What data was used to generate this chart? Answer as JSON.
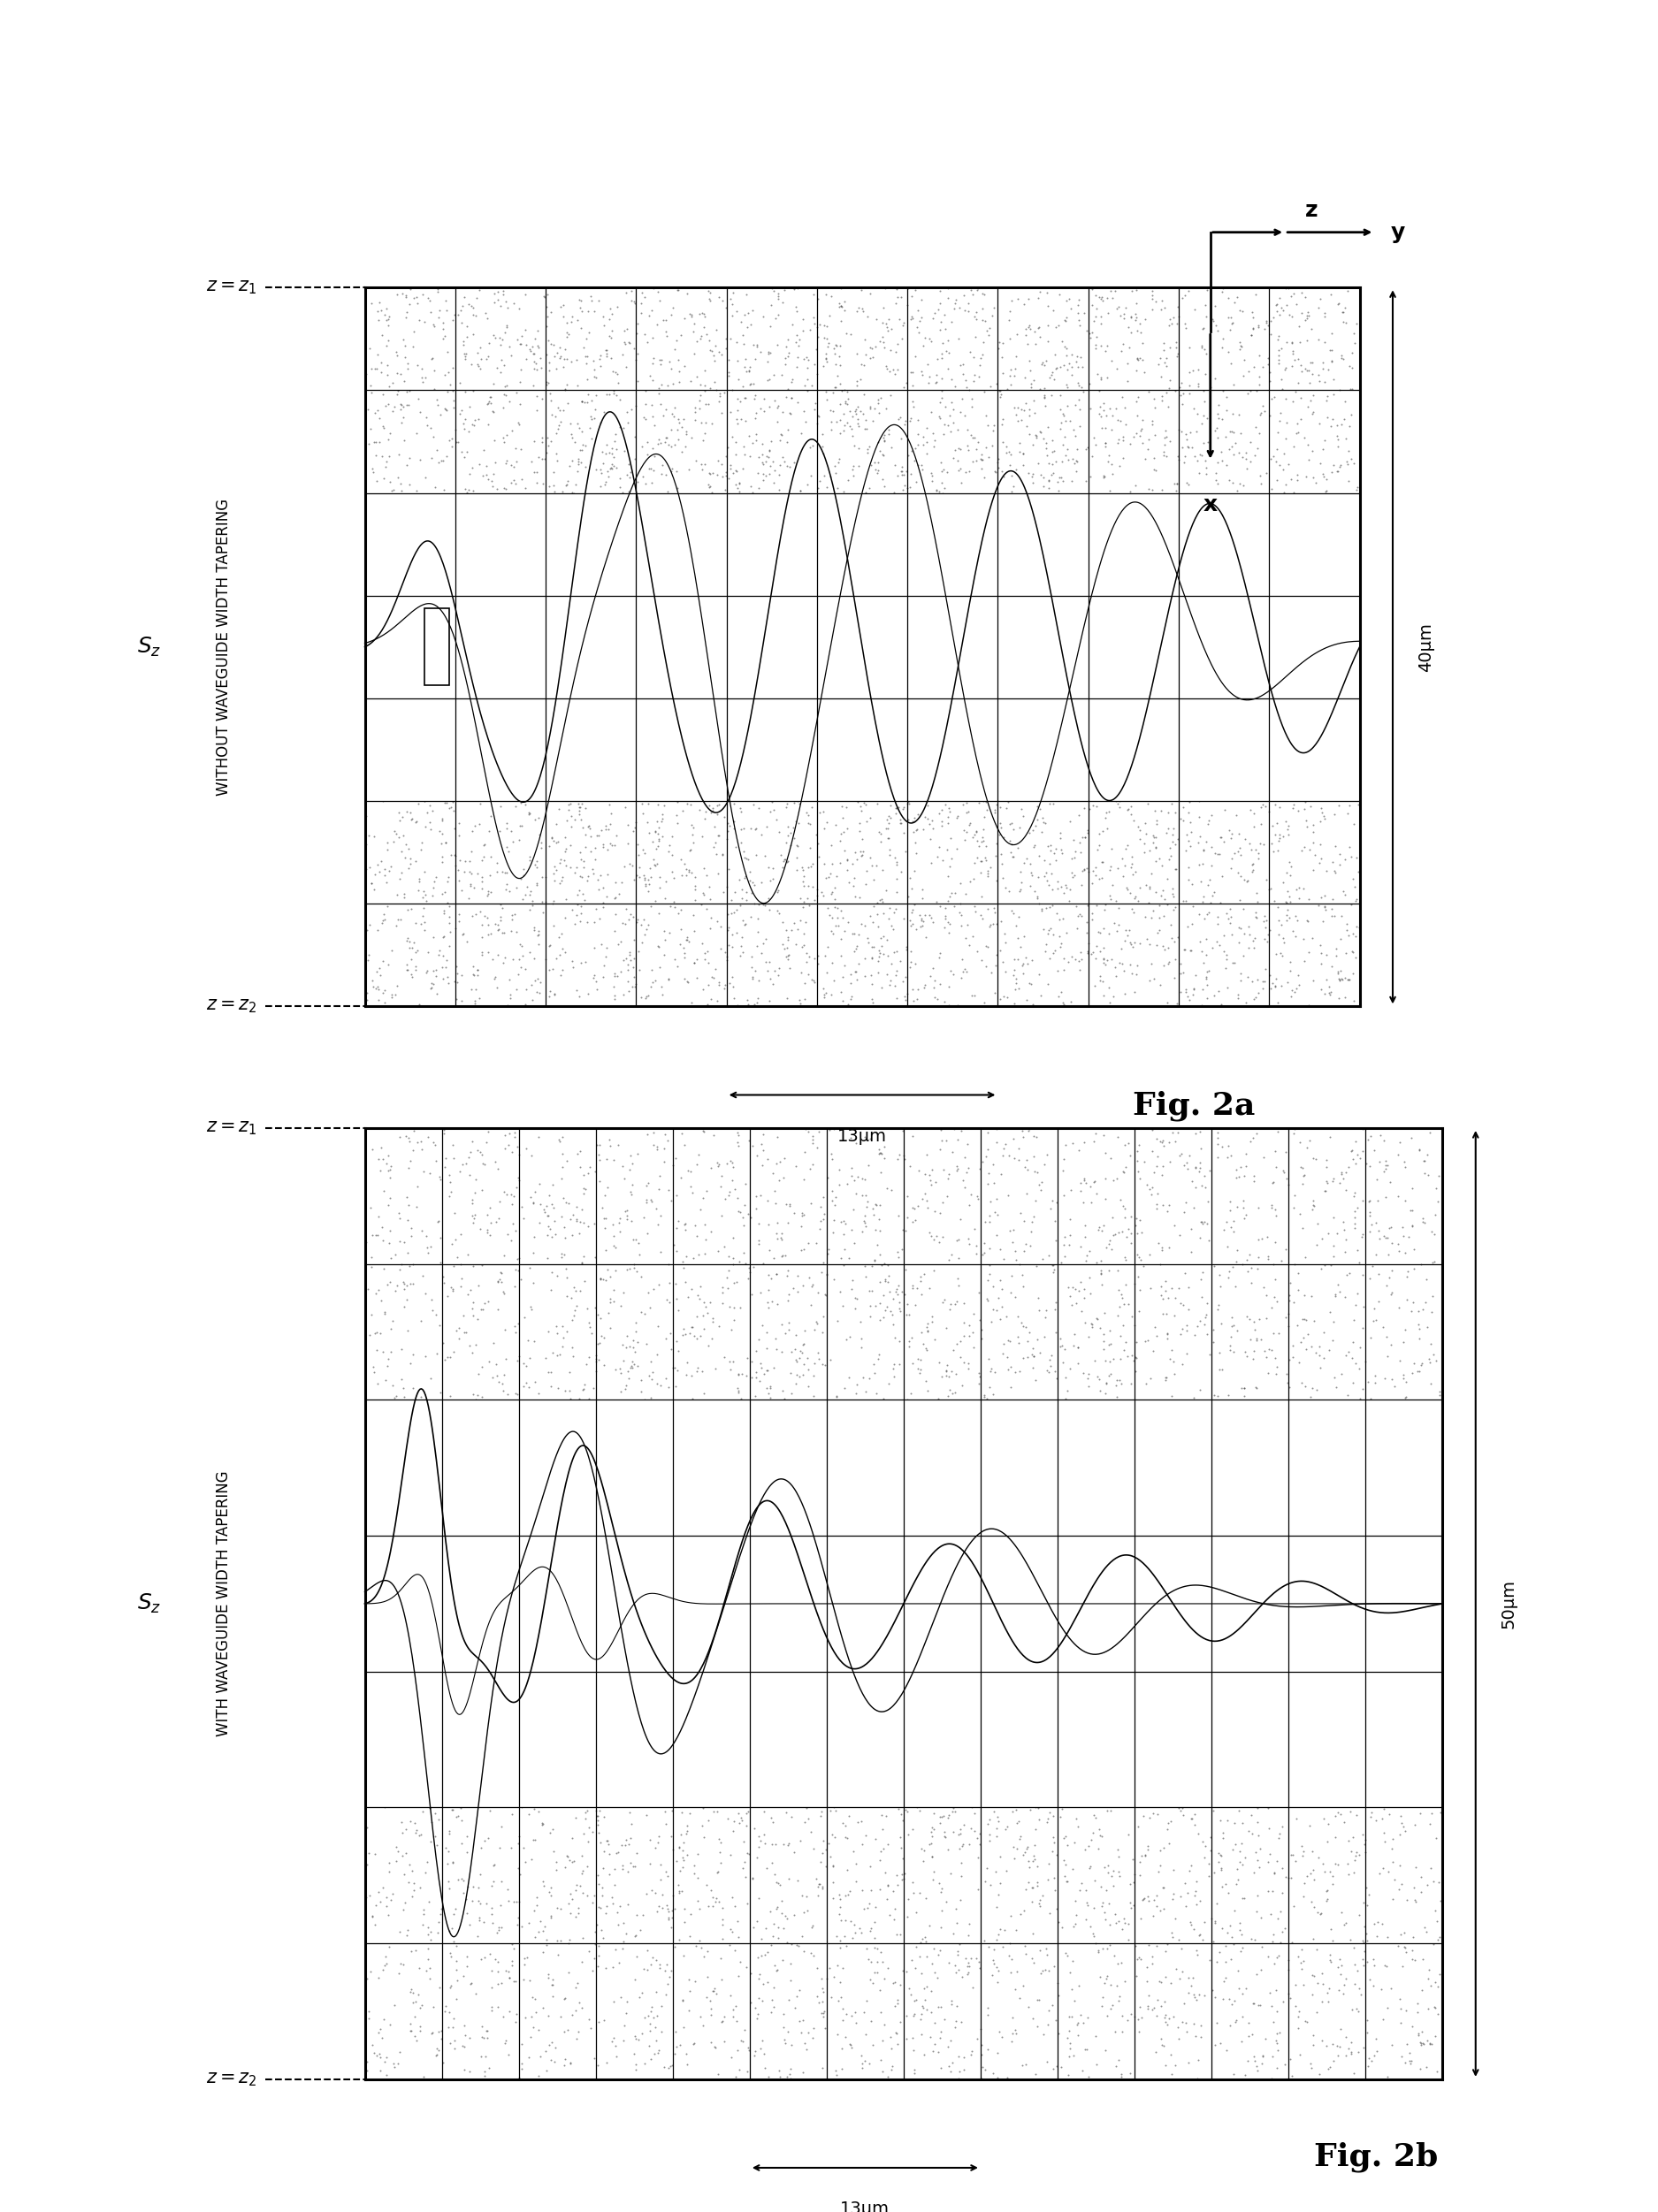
{
  "fig_width": 18.75,
  "fig_height": 25.02,
  "bg_color": "#ffffff",
  "fig2a": {
    "label_main": "WITHOUT WAVEGUIDE WIDTH TAPERING",
    "dim_width": "13μm",
    "dim_height": "40μm",
    "caption": "Fig. 2a",
    "n_vcols": 11,
    "n_hrows": 7
  },
  "fig2b": {
    "label_main": "WITH WAVEGUIDE WIDTH TAPERING",
    "dim_width": "13μm",
    "dim_height": "50μm",
    "caption": "Fig. 2b",
    "n_vcols": 14,
    "n_hrows": 7
  }
}
